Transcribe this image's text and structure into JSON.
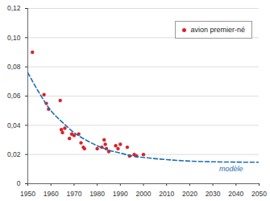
{
  "chart_data": {
    "type": "line",
    "xlim": [
      1950,
      2050
    ],
    "xticks": [
      1950,
      1960,
      1970,
      1980,
      1990,
      2000,
      2010,
      2020,
      2030,
      2040,
      2050
    ],
    "ylim": [
      0,
      0.12
    ],
    "yticks": [
      0,
      {
        "value": 0.02,
        "label": "0,02"
      },
      {
        "value": 0.04,
        "label": "0,04"
      },
      {
        "value": 0.06,
        "label": "0,06"
      },
      {
        "value": 0.08,
        "label": "0,08"
      },
      {
        "value": 0.1,
        "label": "0,10"
      },
      {
        "value": 0.12,
        "label": "0,12"
      }
    ],
    "grid": true,
    "legend": "top-right",
    "series": [
      {
        "name": "avion premier-né",
        "type": "scatter",
        "marker": "circle",
        "color": "#d9232a",
        "x": [
          1952,
          1957,
          1958,
          1959,
          1964,
          1964.5,
          1965,
          1966,
          1968,
          1969,
          1970,
          1972,
          1973,
          1974,
          1974.5,
          1980,
          1982,
          1983,
          1983.5,
          1984,
          1985,
          1988,
          1989,
          1990,
          1993,
          1994,
          1996,
          1997,
          2000
        ],
        "values": [
          0.09,
          0.061,
          0.055,
          0.051,
          0.057,
          0.037,
          0.035,
          0.038,
          0.031,
          0.034,
          0.033,
          0.034,
          0.028,
          0.025,
          0.024,
          0.024,
          0.025,
          0.03,
          0.027,
          0.024,
          0.022,
          0.026,
          0.024,
          0.027,
          0.025,
          0.019,
          0.02,
          0.019,
          0.02
        ]
      },
      {
        "name": "modèle",
        "type": "line",
        "line_style": "dashed",
        "color": "#1f6eb5",
        "x": [
          1950,
          1955,
          1960,
          1965,
          1970,
          1975,
          1980,
          1985,
          1990,
          1995,
          2000,
          2010,
          2020,
          2030,
          2040,
          2050
        ],
        "values": [
          0.076,
          0.062,
          0.05,
          0.042,
          0.035,
          0.03,
          0.026,
          0.023,
          0.021,
          0.019,
          0.018,
          0.0165,
          0.0155,
          0.015,
          0.0148,
          0.0147
        ]
      }
    ]
  }
}
